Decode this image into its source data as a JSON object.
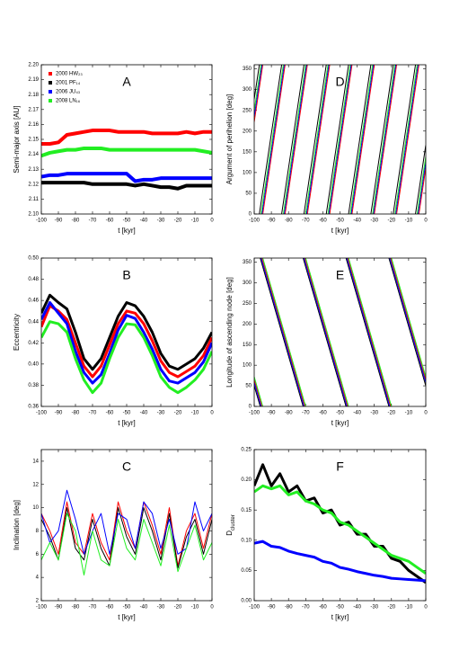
{
  "chart_data": [
    {
      "type": "line",
      "label": "A",
      "x_label": "t [kyr]",
      "y_label": "Semi-major axis [AU]",
      "legend": "upper left",
      "x": [
        -100,
        -95,
        -90,
        -85,
        -80,
        -75,
        -70,
        -65,
        -60,
        -55,
        -50,
        -45,
        -40,
        -35,
        -30,
        -25,
        -20,
        -15,
        -10,
        -5,
        0
      ],
      "xlim": [
        -100,
        0
      ],
      "xticks": [
        -100,
        -90,
        -80,
        -70,
        -60,
        -50,
        -40,
        -30,
        -20,
        -10,
        0
      ],
      "ylim": [
        2.1,
        2.2
      ],
      "yticks": [
        {
          "value": 2.1,
          "label": "2.10"
        },
        2.11,
        2.12,
        2.13,
        2.14,
        2.15,
        2.16,
        2.17,
        2.18,
        2.19,
        {
          "value": 2.2,
          "label": "2.20"
        }
      ],
      "series": [
        {
          "name": "2000 HW₂₃",
          "color": "#ff0000",
          "values": [
            2.147,
            2.147,
            2.148,
            2.153,
            2.154,
            2.155,
            2.156,
            2.156,
            2.156,
            2.155,
            2.155,
            2.155,
            2.155,
            2.154,
            2.154,
            2.154,
            2.154,
            2.155,
            2.154,
            2.155,
            2.155
          ]
        },
        {
          "name": "2001 PF₁₄",
          "color": "#000000",
          "values": [
            2.121,
            2.121,
            2.121,
            2.121,
            2.121,
            2.121,
            2.12,
            2.12,
            2.12,
            2.12,
            2.12,
            2.119,
            2.12,
            2.119,
            2.118,
            2.118,
            2.117,
            2.119,
            2.119,
            2.119,
            2.119
          ]
        },
        {
          "name": "2006 JU₄₃",
          "color": "#0000ff",
          "values": [
            2.125,
            2.126,
            2.126,
            2.127,
            2.127,
            2.127,
            2.127,
            2.127,
            2.127,
            2.127,
            2.127,
            2.122,
            2.123,
            2.123,
            2.124,
            2.124,
            2.124,
            2.124,
            2.124,
            2.124,
            2.124
          ]
        },
        {
          "name": "2008 LN₁₆",
          "color": "#22ee22",
          "values": [
            2.139,
            2.141,
            2.142,
            2.143,
            2.143,
            2.144,
            2.144,
            2.144,
            2.143,
            2.143,
            2.143,
            2.143,
            2.143,
            2.143,
            2.143,
            2.143,
            2.143,
            2.143,
            2.143,
            2.142,
            2.141
          ]
        }
      ]
    },
    {
      "type": "line",
      "label": "D",
      "x_label": "t [kyr]",
      "y_label": "Argument of perihelion [deg]",
      "xlim": [
        -100,
        0
      ],
      "xticks": [
        -100,
        -90,
        -80,
        -70,
        -60,
        -50,
        -40,
        -30,
        -20,
        -10,
        0
      ],
      "ylim": [
        0,
        360
      ],
      "yticks": [
        0,
        50,
        100,
        150,
        200,
        250,
        300,
        350
      ],
      "series": [
        {
          "color": "#ff0000",
          "x": [
            -100,
            -95,
            null,
            -95,
            -82,
            null,
            -82,
            -69,
            null,
            -69,
            -56,
            null,
            -56,
            -43,
            null,
            -43,
            -30,
            null,
            -30,
            -17,
            null,
            -17,
            -4,
            null,
            -4,
            0
          ],
          "values": [
            222,
            360,
            null,
            0,
            360,
            null,
            0,
            360,
            null,
            0,
            360,
            null,
            0,
            360,
            null,
            0,
            360,
            null,
            0,
            360,
            null,
            0,
            360,
            null,
            0,
            111
          ]
        },
        {
          "color": "#000000",
          "x": [
            -100,
            -97,
            null,
            -97,
            -84,
            null,
            -84,
            -71,
            null,
            -71,
            -58,
            null,
            -58,
            -45,
            null,
            -45,
            -32,
            null,
            -32,
            -19,
            null,
            -19,
            -6,
            null,
            -6,
            0
          ],
          "values": [
            277,
            360,
            null,
            0,
            360,
            null,
            0,
            360,
            null,
            0,
            360,
            null,
            0,
            360,
            null,
            0,
            360,
            null,
            0,
            360,
            null,
            0,
            360,
            null,
            0,
            166
          ]
        },
        {
          "color": "#0000ff",
          "x": [
            -100,
            -95.5,
            null,
            -95.5,
            -82.5,
            null,
            -82.5,
            -69.5,
            null,
            -69.5,
            -56.5,
            null,
            -56.5,
            -43.5,
            null,
            -43.5,
            -30.5,
            null,
            -30.5,
            -17.5,
            null,
            -17.5,
            -4.5,
            null,
            -4.5,
            0
          ],
          "values": [
            235,
            360,
            null,
            0,
            360,
            null,
            0,
            360,
            null,
            0,
            360,
            null,
            0,
            360,
            null,
            0,
            360,
            null,
            0,
            360,
            null,
            0,
            360,
            null,
            0,
            125
          ]
        },
        {
          "color": "#22ee22",
          "x": [
            -100,
            -96,
            null,
            -96,
            -83,
            null,
            -83,
            -70,
            null,
            -70,
            -57,
            null,
            -57,
            -44,
            null,
            -44,
            -31,
            null,
            -31,
            -18,
            null,
            -18,
            -5,
            null,
            -5,
            0
          ],
          "values": [
            249,
            360,
            null,
            0,
            360,
            null,
            0,
            360,
            null,
            0,
            360,
            null,
            0,
            360,
            null,
            0,
            360,
            null,
            0,
            360,
            null,
            0,
            360,
            null,
            0,
            138
          ]
        }
      ]
    },
    {
      "type": "line",
      "label": "B",
      "x_label": "t [kyr]",
      "y_label": "Eccentricity",
      "x": [
        -100,
        -95,
        -90,
        -85,
        -80,
        -75,
        -70,
        -65,
        -60,
        -55,
        -50,
        -45,
        -40,
        -35,
        -30,
        -25,
        -20,
        -15,
        -10,
        -5,
        0
      ],
      "xlim": [
        -100,
        0
      ],
      "xticks": [
        -100,
        -90,
        -80,
        -70,
        -60,
        -50,
        -40,
        -30,
        -20,
        -10,
        0
      ],
      "ylim": [
        0.36,
        0.5
      ],
      "yticks": [
        0.36,
        0.38,
        {
          "value": 0.4,
          "label": "0.40"
        },
        0.42,
        0.44,
        0.46,
        0.48,
        {
          "value": 0.5,
          "label": "0.50"
        }
      ],
      "series": [
        {
          "color": "#000000",
          "values": [
            0.448,
            0.465,
            0.458,
            0.452,
            0.43,
            0.405,
            0.395,
            0.405,
            0.425,
            0.445,
            0.458,
            0.455,
            0.445,
            0.43,
            0.41,
            0.398,
            0.395,
            0.4,
            0.405,
            0.415,
            0.43
          ]
        },
        {
          "color": "#ff0000",
          "values": [
            0.435,
            0.455,
            0.45,
            0.442,
            0.42,
            0.398,
            0.388,
            0.398,
            0.418,
            0.438,
            0.45,
            0.448,
            0.438,
            0.422,
            0.403,
            0.392,
            0.388,
            0.393,
            0.398,
            0.408,
            0.425
          ]
        },
        {
          "color": "#0000ff",
          "values": [
            0.442,
            0.458,
            0.448,
            0.438,
            0.412,
            0.392,
            0.382,
            0.39,
            0.41,
            0.432,
            0.446,
            0.443,
            0.43,
            0.414,
            0.395,
            0.384,
            0.382,
            0.387,
            0.392,
            0.402,
            0.42
          ]
        },
        {
          "color": "#22ee22",
          "values": [
            0.425,
            0.44,
            0.438,
            0.43,
            0.405,
            0.385,
            0.373,
            0.382,
            0.405,
            0.425,
            0.438,
            0.437,
            0.425,
            0.408,
            0.388,
            0.378,
            0.373,
            0.378,
            0.385,
            0.395,
            0.412
          ]
        }
      ]
    },
    {
      "type": "line",
      "label": "E",
      "x_label": "t [kyr]",
      "y_label": "Longitude of ascending node [deg]",
      "xlim": [
        -100,
        0
      ],
      "xticks": [
        -100,
        -90,
        -80,
        -70,
        -60,
        -50,
        -40,
        -30,
        -20,
        -10,
        0
      ],
      "ylim": [
        0,
        360
      ],
      "yticks": [
        0,
        50,
        100,
        150,
        200,
        250,
        300,
        350
      ],
      "series": [
        {
          "color": "#ff0000",
          "x": [
            -100,
            -95.5,
            null,
            -95.5,
            -70.5,
            null,
            -70.5,
            -45.5,
            null,
            -45.5,
            -20.5,
            null,
            -20.5,
            0
          ],
          "values": [
            65,
            0,
            null,
            360,
            0,
            null,
            360,
            0,
            null,
            360,
            0,
            null,
            360,
            65
          ]
        },
        {
          "color": "#000000",
          "x": [
            -100,
            -96.5,
            null,
            -96.5,
            -71.5,
            null,
            -71.5,
            -46.5,
            null,
            -46.5,
            -21.5,
            null,
            -21.5,
            0
          ],
          "values": [
            50,
            0,
            null,
            360,
            0,
            null,
            360,
            0,
            null,
            360,
            0,
            null,
            360,
            50
          ]
        },
        {
          "color": "#0000ff",
          "x": [
            -100,
            -96,
            null,
            -96,
            -71,
            null,
            -71,
            -46,
            null,
            -46,
            -21,
            null,
            -21,
            0
          ],
          "values": [
            58,
            0,
            null,
            360,
            0,
            null,
            360,
            0,
            null,
            360,
            0,
            null,
            360,
            58
          ]
        },
        {
          "color": "#22ee22",
          "x": [
            -100,
            -95,
            null,
            -95,
            -70,
            null,
            -70,
            -45,
            null,
            -45,
            -20,
            null,
            -20,
            0
          ],
          "values": [
            72,
            0,
            null,
            360,
            0,
            null,
            360,
            0,
            null,
            360,
            0,
            null,
            360,
            72
          ]
        }
      ]
    },
    {
      "type": "line",
      "label": "C",
      "x_label": "t [kyr]",
      "y_label": "Inclination [deg]",
      "x": [
        -100,
        -95,
        -90,
        -85,
        -80,
        -75,
        -70,
        -65,
        -60,
        -55,
        -50,
        -45,
        -40,
        -35,
        -30,
        -25,
        -20,
        -15,
        -10,
        -5,
        0
      ],
      "xlim": [
        -100,
        0
      ],
      "xticks": [
        -100,
        -90,
        -80,
        -70,
        -60,
        -50,
        -40,
        -30,
        -20,
        -10,
        0
      ],
      "ylim": [
        2,
        15
      ],
      "yticks": [
        2,
        4,
        6,
        8,
        10,
        12,
        14
      ],
      "series": [
        {
          "color": "#ff0000",
          "values": [
            9.5,
            8.0,
            6.0,
            10.5,
            7.0,
            6.0,
            9.5,
            7.0,
            5.5,
            10.5,
            8.0,
            6.5,
            10.5,
            8.5,
            6.0,
            10.0,
            5.0,
            8.0,
            9.5,
            6.5,
            9.5
          ]
        },
        {
          "color": "#000000",
          "values": [
            9.0,
            7.5,
            5.5,
            10.0,
            6.5,
            5.5,
            9.0,
            6.5,
            5.0,
            10.0,
            7.5,
            6.0,
            10.0,
            8.0,
            5.5,
            9.5,
            4.8,
            7.5,
            9.0,
            6.0,
            9.0
          ]
        },
        {
          "color": "#0000ff",
          "values": [
            9.5,
            7.0,
            8.0,
            11.5,
            9.0,
            6.0,
            8.0,
            9.5,
            6.0,
            9.5,
            9.0,
            6.5,
            10.5,
            9.5,
            6.5,
            9.0,
            6.0,
            6.5,
            10.5,
            8.0,
            9.5
          ]
        },
        {
          "color": "#22ee22",
          "values": [
            5.5,
            7.0,
            5.5,
            9.5,
            8.0,
            4.2,
            8.0,
            5.5,
            5.0,
            9.0,
            6.5,
            5.5,
            9.0,
            7.0,
            5.0,
            8.5,
            4.5,
            6.5,
            8.5,
            5.5,
            7.0
          ]
        }
      ]
    },
    {
      "type": "line",
      "label": "F",
      "x_label": "t [kyr]",
      "y_label": "D",
      "y_label_sub": "cluster",
      "x": [
        -100,
        -95,
        -90,
        -85,
        -80,
        -75,
        -70,
        -65,
        -60,
        -55,
        -50,
        -45,
        -40,
        -35,
        -30,
        -25,
        -20,
        -15,
        -10,
        -5,
        0
      ],
      "xlim": [
        -100,
        0
      ],
      "xticks": [
        -100,
        -90,
        -80,
        -70,
        -60,
        -50,
        -40,
        -30,
        -20,
        -10,
        0
      ],
      "ylim": [
        0,
        0.25
      ],
      "yticks": [
        {
          "value": 0,
          "label": "0.00"
        },
        0.05,
        {
          "value": 0.1,
          "label": "0.10"
        },
        0.15,
        {
          "value": 0.2,
          "label": "0.20"
        },
        0.25
      ],
      "series": [
        {
          "color": "#000000",
          "values": [
            0.19,
            0.225,
            0.19,
            0.21,
            0.18,
            0.19,
            0.165,
            0.17,
            0.145,
            0.15,
            0.125,
            0.13,
            0.11,
            0.11,
            0.09,
            0.09,
            0.07,
            0.065,
            0.05,
            0.04,
            0.03
          ]
        },
        {
          "color": "#22ee22",
          "values": [
            0.18,
            0.19,
            0.185,
            0.19,
            0.175,
            0.18,
            0.165,
            0.16,
            0.15,
            0.145,
            0.13,
            0.125,
            0.115,
            0.105,
            0.095,
            0.085,
            0.075,
            0.07,
            0.065,
            0.055,
            0.045
          ]
        },
        {
          "color": "#0000ff",
          "values": [
            0.095,
            0.098,
            0.09,
            0.088,
            0.082,
            0.078,
            0.075,
            0.072,
            0.065,
            0.062,
            0.055,
            0.052,
            0.048,
            0.045,
            0.042,
            0.04,
            0.037,
            0.036,
            0.035,
            0.034,
            0.033
          ]
        }
      ]
    }
  ]
}
